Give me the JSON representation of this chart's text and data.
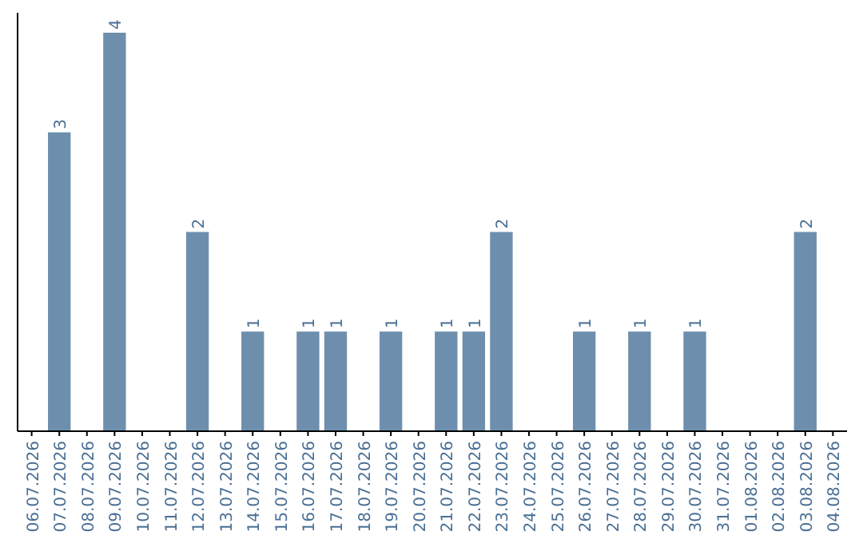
{
  "chart_data": {
    "type": "bar",
    "categories": [
      "06.07.2026",
      "07.07.2026",
      "08.07.2026",
      "09.07.2026",
      "10.07.2026",
      "11.07.2026",
      "12.07.2026",
      "13.07.2026",
      "14.07.2026",
      "15.07.2026",
      "16.07.2026",
      "17.07.2026",
      "18.07.2026",
      "19.07.2026",
      "20.07.2026",
      "21.07.2026",
      "22.07.2026",
      "23.07.2026",
      "24.07.2026",
      "25.07.2026",
      "26.07.2026",
      "27.07.2026",
      "28.07.2026",
      "29.07.2026",
      "30.07.2026",
      "31.07.2026",
      "01.08.2026",
      "02.08.2026",
      "03.08.2026",
      "04.08.2026"
    ],
    "values": [
      0,
      3,
      0,
      4,
      0,
      0,
      2,
      0,
      1,
      0,
      1,
      1,
      0,
      1,
      0,
      1,
      1,
      2,
      0,
      0,
      1,
      0,
      1,
      0,
      1,
      0,
      0,
      0,
      2,
      0
    ],
    "value_labels": [
      null,
      "3",
      null,
      "4",
      null,
      null,
      "2",
      null,
      "1",
      null,
      "1",
      "1",
      null,
      "1",
      null,
      "1",
      "1",
      "2",
      null,
      null,
      "1",
      null,
      "1",
      null,
      "1",
      null,
      null,
      null,
      "2",
      null
    ],
    "color": "#6d8fad",
    "tick_labels": "x"
  }
}
